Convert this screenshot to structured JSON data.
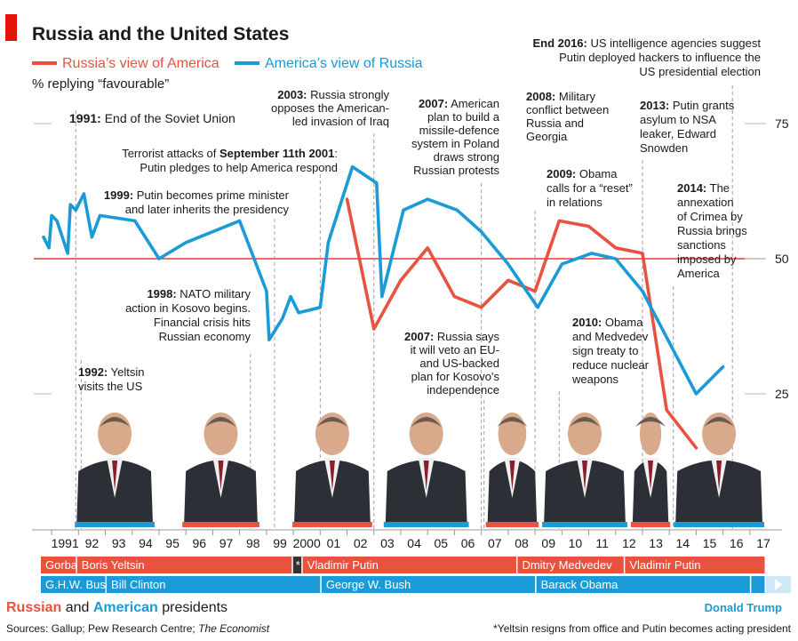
{
  "title": "Russia and the United States",
  "subtitle": "% replying “favourable”",
  "colors": {
    "russia": "#e8523f",
    "america": "#1a9ad6",
    "brand": "#e3120b",
    "grid": "#c8c8c8",
    "dash": "#a0a0a0"
  },
  "chart_data": {
    "type": "line",
    "xlim": [
      1990.6,
      2017.6
    ],
    "ylim": [
      0,
      90
    ],
    "yticks": [
      25,
      50,
      75
    ],
    "reference_line": 50,
    "x_tick_labels": [
      "1991",
      "92",
      "93",
      "94",
      "95",
      "96",
      "97",
      "98",
      "99",
      "2000",
      "01",
      "02",
      "03",
      "04",
      "05",
      "06",
      "07",
      "08",
      "09",
      "10",
      "11",
      "12",
      "13",
      "14",
      "15",
      "16",
      "17"
    ],
    "series": [
      {
        "name": "Russia’s view of America",
        "color": "#e8523f",
        "x": [
          2002.0,
          2003.0,
          2004.0,
          2005.0,
          2006.0,
          2007.0,
          2008.0,
          2009.0,
          2009.9,
          2011.0,
          2012.0,
          2013.0,
          2013.9,
          2015.0
        ],
        "y": [
          61,
          37,
          46,
          52,
          43,
          41,
          46,
          44,
          57,
          56,
          52,
          51,
          22,
          15
        ]
      },
      {
        "name": "America’s view of Russia",
        "color": "#1a9ad6",
        "x": [
          1990.7,
          1990.9,
          1991.0,
          1991.2,
          1991.6,
          1991.7,
          1991.9,
          1992.2,
          1992.5,
          1992.8,
          1994.1,
          1995.0,
          1996.0,
          1998.0,
          1999.0,
          1999.1,
          1999.6,
          1999.9,
          2000.2,
          2001.0,
          2001.3,
          2002.2,
          2003.1,
          2003.3,
          2004.1,
          2005.0,
          2006.1,
          2007.0,
          2008.0,
          2009.1,
          2010.0,
          2011.1,
          2012.0,
          2013.0,
          2015.0,
          2016.0
        ],
        "y": [
          54,
          52,
          58,
          57,
          51,
          60,
          59,
          62,
          54,
          58,
          57,
          50,
          53,
          57,
          44,
          35,
          39,
          43,
          40,
          41,
          53,
          67,
          64,
          43,
          59,
          61,
          59,
          55,
          49,
          41,
          49,
          51,
          50,
          44,
          25,
          30
        ]
      }
    ]
  },
  "annotations": {
    "a1991": "End of the Soviet Union",
    "a1992": [
      "1992: Yeltsin",
      "visits the US"
    ],
    "a1998": [
      "1998: NATO military",
      "action in Kosovo begins.",
      "Financial crisis hits",
      "Russian economy"
    ],
    "a1999": [
      "1999: Putin becomes prime minister",
      "and later inherits the presidency"
    ],
    "a2001": [
      "Terrorist attacks of September 11th 2001:",
      "Putin pledges to help America respond"
    ],
    "a2003": [
      "2003: Russia strongly",
      "opposes the American-",
      "led invasion of Iraq"
    ],
    "a2007a": [
      "2007: American",
      "plan to build a",
      "missile-defence",
      "system in Poland",
      "draws strong",
      "Russian protests"
    ],
    "a2007b": [
      "2007: Russia says",
      "it will veto an EU-",
      "and US-backed",
      "plan for Kosovo's",
      "independence"
    ],
    "a2008": [
      "2008: Military",
      "conflict between",
      "Russia and",
      "Georgia"
    ],
    "a2009": [
      "2009: Obama",
      "calls for a “reset”",
      "in relations"
    ],
    "a2010": [
      "2010: Obama",
      "and Medvedev",
      "sign treaty to",
      "reduce nuclear",
      "weapons"
    ],
    "a2013": [
      "2013: Putin grants",
      "asylum to NSA",
      "leaker, Edward",
      "Snowden"
    ],
    "a2014": [
      "2014: The",
      "annexation",
      "of Crimea by",
      "Russia brings",
      "sanctions",
      "imposed by",
      "America"
    ],
    "a2016": [
      "End 2016: US intelligence agencies suggest",
      "Putin deployed hackers to influence the",
      "US presidential election"
    ]
  },
  "presidents": {
    "russian": [
      {
        "name": "Gorbachev",
        "from": 1990.6,
        "to": 1991.95
      },
      {
        "name": "Boris Yeltsin",
        "from": 1991.95,
        "to": 1999.99
      },
      {
        "name": "*",
        "from": 1999.99,
        "to": 2000.35
      },
      {
        "name": "Vladimir Putin",
        "from": 2000.35,
        "to": 2008.35
      },
      {
        "name": "Dmitry Medvedev",
        "from": 2008.35,
        "to": 2012.35
      },
      {
        "name": "Vladimir Putin",
        "from": 2012.35,
        "to": 2017.6
      }
    ],
    "american": [
      {
        "name": "G.H.W. Bush",
        "from": 1990.6,
        "to": 1993.05
      },
      {
        "name": "Bill Clinton",
        "from": 1993.05,
        "to": 2001.05
      },
      {
        "name": "George W. Bush",
        "from": 2001.05,
        "to": 2009.05
      },
      {
        "name": "Barack Obama",
        "from": 2009.05,
        "to": 2017.05
      },
      {
        "name": "",
        "from": 2017.05,
        "to": 2017.6
      }
    ]
  },
  "photos": [
    {
      "name": "Bill Clinton",
      "color": "#1a9ad6",
      "from": 1991.8,
      "to": 1994.9
    },
    {
      "name": "Boris Yeltsin",
      "color": "#e8523f",
      "from": 1995.8,
      "to": 1998.8
    },
    {
      "name": "Vladimir Putin",
      "color": "#e8523f",
      "from": 1999.9,
      "to": 2003.0
    },
    {
      "name": "George W. Bush",
      "color": "#1a9ad6",
      "from": 2003.3,
      "to": 2006.6
    },
    {
      "name": "Dmitry Medvedev",
      "color": "#e8523f",
      "from": 2007.1,
      "to": 2009.2
    },
    {
      "name": "Barack Obama",
      "color": "#1a9ad6",
      "from": 2009.2,
      "to": 2012.5
    },
    {
      "name": "Vladimir Putin",
      "color": "#e8523f",
      "from": 2012.5,
      "to": 2014.1
    },
    {
      "name": "Donald Trump",
      "color": "#1a9ad6",
      "from": 2014.1,
      "to": 2017.6
    }
  ],
  "footer": {
    "caption_russian": "Russian",
    "caption_and": "and",
    "caption_american": "American",
    "caption_rest": "presidents",
    "trump_label": "Donald Trump",
    "sources_prefix": "Sources: Gallup; Pew Research Centre; ",
    "sources_italic": "The Economist",
    "footnote": "*Yeltsin resigns from office and Putin becomes acting president"
  }
}
